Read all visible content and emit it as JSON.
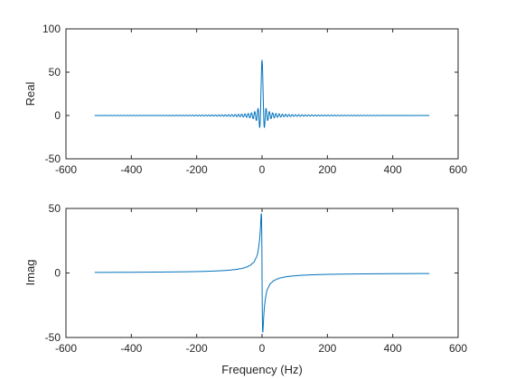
{
  "chart_data": [
    {
      "type": "line",
      "ylabel": "Real",
      "xlabel": "",
      "xlim": [
        -600,
        600
      ],
      "ylim": [
        -50,
        100
      ],
      "x_ticks": [
        -600,
        -400,
        -200,
        0,
        200,
        400,
        600
      ],
      "y_ticks": [
        -50,
        0,
        50,
        100
      ],
      "x_tick_labels": [
        "-600",
        "-400",
        "-200",
        "0",
        "200",
        "400",
        "600"
      ],
      "y_tick_labels": [
        "-50",
        "0",
        "50",
        "100"
      ],
      "grid": false,
      "line_color": "#0072BD",
      "series": [
        {
          "x_range": [
            -512,
            512
          ],
          "shape": "sinc-like oscillation centered at 0 Hz, main lobe peak approx 63, first sidelobes approx -13, ripple period approx 10 Hz decaying toward 0 at edges",
          "key_points": [
            {
              "x": -512,
              "y": 0
            },
            {
              "x": -60,
              "y": 1.5
            },
            {
              "x": -30,
              "y": 3
            },
            {
              "x": -15,
              "y": -13
            },
            {
              "x": -10,
              "y": 6
            },
            {
              "x": 0,
              "y": 63
            },
            {
              "x": 10,
              "y": 6
            },
            {
              "x": 15,
              "y": -13
            },
            {
              "x": 30,
              "y": 3
            },
            {
              "x": 60,
              "y": 1.5
            },
            {
              "x": 512,
              "y": 0
            }
          ]
        }
      ]
    },
    {
      "type": "line",
      "ylabel": "Imag",
      "xlabel": "Frequency (Hz)",
      "xlim": [
        -600,
        600
      ],
      "ylim": [
        -50,
        50
      ],
      "x_ticks": [
        -600,
        -400,
        -200,
        0,
        200,
        400,
        600
      ],
      "y_ticks": [
        -50,
        0,
        50
      ],
      "x_tick_labels": [
        "-600",
        "-400",
        "-200",
        "0",
        "200",
        "400",
        "600"
      ],
      "y_tick_labels": [
        "-50",
        "0",
        "50"
      ],
      "grid": false,
      "line_color": "#0072BD",
      "series": [
        {
          "x_range": [
            -512,
            512
          ],
          "shape": "odd dispersive oscillation, peak approx 45 just left of 0 Hz, trough approx -45 just right of 0 Hz, ripple envelope positive on left side and negative on right side decaying toward 0",
          "key_points": [
            {
              "x": -512,
              "y": 0
            },
            {
              "x": -100,
              "y": 2
            },
            {
              "x": -30,
              "y": 8
            },
            {
              "x": -12,
              "y": 14
            },
            {
              "x": -3,
              "y": 45
            },
            {
              "x": 3,
              "y": -45
            },
            {
              "x": 12,
              "y": -14
            },
            {
              "x": 30,
              "y": -8
            },
            {
              "x": 100,
              "y": -2
            },
            {
              "x": 512,
              "y": 0
            }
          ]
        }
      ]
    }
  ]
}
